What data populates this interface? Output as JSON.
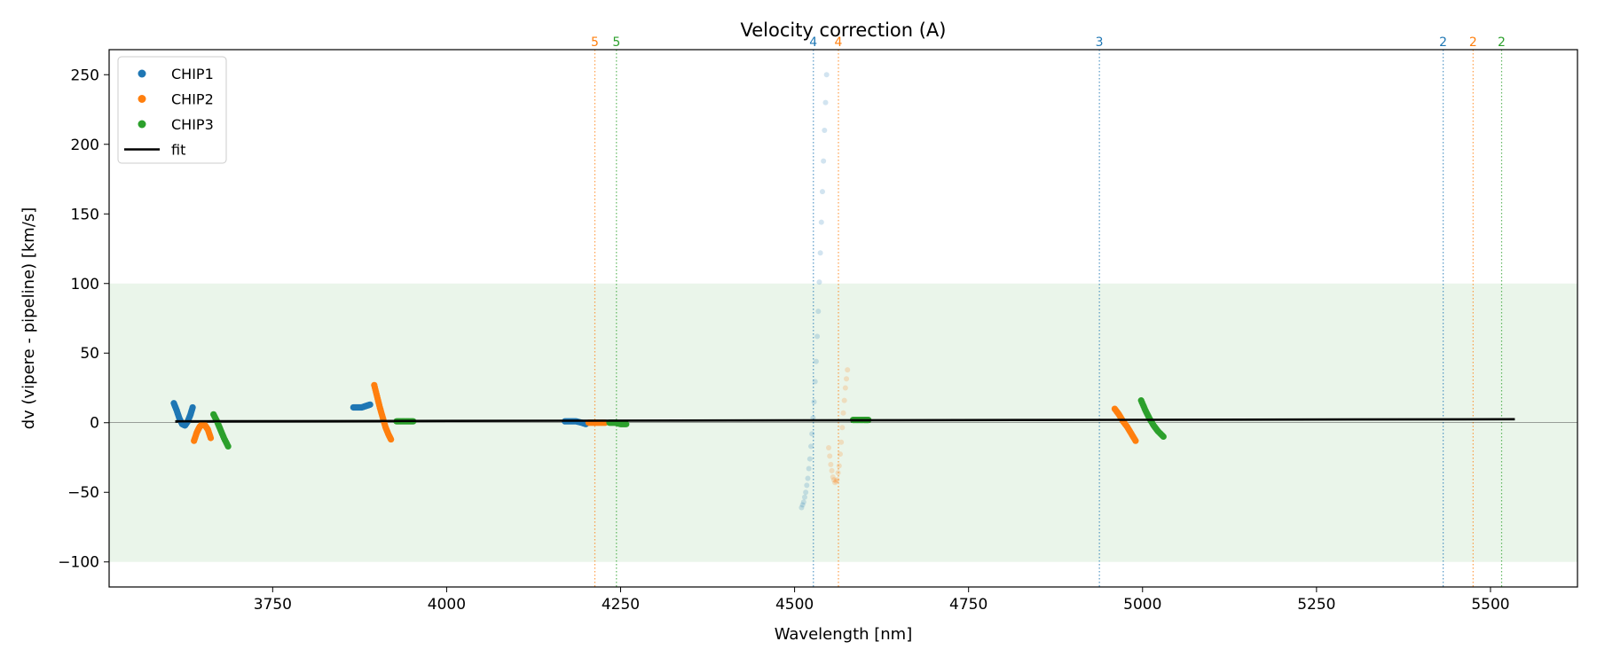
{
  "chart_data": {
    "type": "scatter",
    "title": "Velocity correction (A)",
    "xlabel": "Wavelength [nm]",
    "ylabel": "dv (vipere - pipeline) [km/s]",
    "xlim": [
      3515,
      5625
    ],
    "ylim": [
      -118,
      268
    ],
    "xticks": [
      3750,
      4000,
      4250,
      4500,
      4750,
      5000,
      5250,
      5500
    ],
    "yticks": [
      -100,
      -50,
      0,
      50,
      100,
      150,
      200,
      250
    ],
    "grid": false,
    "zero_line": true,
    "accepted_band": [
      -100,
      100
    ],
    "band_color": "#eaf5ea",
    "legend": {
      "placement": "upper-left",
      "entries": [
        {
          "label": "CHIP1",
          "color": "#1f77b4",
          "kind": "marker"
        },
        {
          "label": "CHIP2",
          "color": "#ff7f0e",
          "kind": "marker"
        },
        {
          "label": "CHIP3",
          "color": "#2ca02c",
          "kind": "marker"
        },
        {
          "label": "fit",
          "color": "#000000",
          "kind": "line"
        }
      ]
    },
    "fit_line": {
      "x": [
        3610,
        5535
      ],
      "y": [
        1.0,
        2.5
      ],
      "color": "#000000"
    },
    "order_markers": [
      {
        "x": 4213,
        "label": "5",
        "color": "#ff7f0e"
      },
      {
        "x": 4244,
        "label": "5",
        "color": "#2ca02c"
      },
      {
        "x": 4527,
        "label": "4",
        "color": "#1f77b4"
      },
      {
        "x": 4563,
        "label": "4",
        "color": "#ff7f0e"
      },
      {
        "x": 4938,
        "label": "3",
        "color": "#1f77b4"
      },
      {
        "x": 5432,
        "label": "2",
        "color": "#1f77b4"
      },
      {
        "x": 5475,
        "label": "2",
        "color": "#ff7f0e"
      },
      {
        "x": 5516,
        "label": "2",
        "color": "#2ca02c"
      }
    ],
    "series": [
      {
        "name": "CHIP1",
        "color": "#1f77b4",
        "faded": false,
        "points": [
          [
            3608,
            14
          ],
          [
            3612,
            9
          ],
          [
            3616,
            3
          ],
          [
            3620,
            -1
          ],
          [
            3624,
            -2
          ],
          [
            3628,
            1
          ],
          [
            3632,
            6
          ],
          [
            3635,
            11
          ]
        ]
      },
      {
        "name": "CHIP2",
        "color": "#ff7f0e",
        "faded": false,
        "points": [
          [
            3637,
            -13
          ],
          [
            3641,
            -7
          ],
          [
            3645,
            -3
          ],
          [
            3649,
            -1
          ],
          [
            3653,
            -2
          ],
          [
            3657,
            -5
          ],
          [
            3661,
            -11
          ]
        ]
      },
      {
        "name": "CHIP3",
        "color": "#2ca02c",
        "faded": false,
        "points": [
          [
            3665,
            6
          ],
          [
            3670,
            1
          ],
          [
            3675,
            -5
          ],
          [
            3680,
            -11
          ],
          [
            3686,
            -17
          ]
        ]
      },
      {
        "name": "CHIP1",
        "color": "#1f77b4",
        "faded": false,
        "points": [
          [
            3866,
            11
          ],
          [
            3872,
            11
          ],
          [
            3878,
            11
          ],
          [
            3884,
            12
          ],
          [
            3890,
            13
          ]
        ]
      },
      {
        "name": "CHIP2",
        "color": "#ff7f0e",
        "faded": false,
        "points": [
          [
            3896,
            27
          ],
          [
            3900,
            19
          ],
          [
            3904,
            11
          ],
          [
            3908,
            4
          ],
          [
            3912,
            -3
          ],
          [
            3916,
            -8
          ],
          [
            3920,
            -12
          ]
        ]
      },
      {
        "name": "CHIP3",
        "color": "#2ca02c",
        "faded": false,
        "points": [
          [
            3928,
            1
          ],
          [
            3936,
            1
          ],
          [
            3944,
            1
          ],
          [
            3952,
            1
          ]
        ]
      },
      {
        "name": "CHIP1",
        "color": "#1f77b4",
        "faded": false,
        "points": [
          [
            4170,
            1
          ],
          [
            4178,
            1
          ],
          [
            4186,
            1
          ],
          [
            4194,
            0
          ],
          [
            4200,
            -1
          ]
        ]
      },
      {
        "name": "CHIP2",
        "color": "#ff7f0e",
        "faded": false,
        "points": [
          [
            4204,
            0
          ],
          [
            4212,
            0
          ],
          [
            4220,
            0
          ],
          [
            4228,
            0
          ]
        ]
      },
      {
        "name": "CHIP3",
        "color": "#2ca02c",
        "faded": false,
        "points": [
          [
            4234,
            0
          ],
          [
            4242,
            0
          ],
          [
            4250,
            -1
          ],
          [
            4258,
            -1
          ]
        ]
      },
      {
        "name": "CHIP1",
        "color": "#1f77b4",
        "faded": true,
        "points": [
          [
            4510,
            -61
          ],
          [
            4513,
            -57
          ],
          [
            4516,
            -50
          ],
          [
            4519,
            -40
          ],
          [
            4522,
            -26
          ],
          [
            4525,
            -8
          ],
          [
            4528,
            15
          ],
          [
            4531,
            44
          ],
          [
            4534,
            80
          ],
          [
            4537,
            122
          ],
          [
            4540,
            166
          ],
          [
            4543,
            210
          ],
          [
            4546,
            250
          ]
        ]
      },
      {
        "name": "CHIP2",
        "color": "#ff7f0e",
        "faded": true,
        "points": [
          [
            4549,
            -18
          ],
          [
            4552,
            -30
          ],
          [
            4555,
            -39
          ],
          [
            4558,
            -43
          ],
          [
            4561,
            -41
          ],
          [
            4564,
            -31
          ],
          [
            4567,
            -14
          ],
          [
            4570,
            7
          ],
          [
            4573,
            25
          ],
          [
            4576,
            38
          ]
        ]
      },
      {
        "name": "CHIP3",
        "color": "#2ca02c",
        "faded": false,
        "points": [
          [
            4584,
            2
          ],
          [
            4592,
            2
          ],
          [
            4600,
            2
          ],
          [
            4606,
            2
          ]
        ]
      },
      {
        "name": "CHIP2",
        "color": "#ff7f0e",
        "faded": false,
        "points": [
          [
            4960,
            10
          ],
          [
            4966,
            6
          ],
          [
            4972,
            1
          ],
          [
            4978,
            -3
          ],
          [
            4984,
            -8
          ],
          [
            4990,
            -13
          ]
        ]
      },
      {
        "name": "CHIP3",
        "color": "#2ca02c",
        "faded": false,
        "points": [
          [
            4998,
            16
          ],
          [
            5004,
            9
          ],
          [
            5010,
            3
          ],
          [
            5016,
            -2
          ],
          [
            5022,
            -6
          ],
          [
            5030,
            -10
          ]
        ]
      }
    ]
  }
}
